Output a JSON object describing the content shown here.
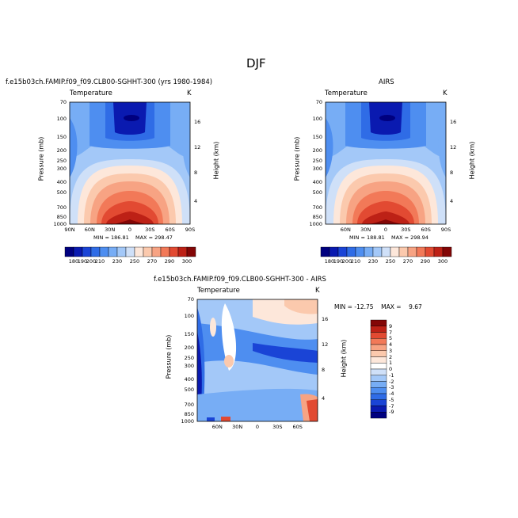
{
  "page_title": "DJF",
  "colors": {
    "temp_scale": [
      "#00007f",
      "#0a1ab0",
      "#1a44d6",
      "#2f6ce6",
      "#4e8ef0",
      "#77adf5",
      "#a3c8f8",
      "#cfe0f8",
      "#fde7da",
      "#fbc9ad",
      "#f7a383",
      "#f27958",
      "#e24a32",
      "#bd2116",
      "#830606"
    ],
    "diff_scale": [
      "#00007f",
      "#0a1ab0",
      "#1a44d6",
      "#2f6ce6",
      "#4e8ef0",
      "#77adf5",
      "#a3c8f8",
      "#cfe0f8",
      "#ffffff",
      "#fde7da",
      "#fbc9ad",
      "#f7a383",
      "#f27958",
      "#e24a32",
      "#bd2116",
      "#830606"
    ]
  },
  "chart_data": [
    {
      "type": "heatmap",
      "header": "f.e15b03ch.FAMIP.f09_f09.CLB00-SGHHT-300 (yrs 1980-1984)",
      "left_title": "Temperature",
      "right_title": "K",
      "ylabel": "Pressure (mb)",
      "y2label": "Height (km)",
      "x_ticks": [
        "90N",
        "60N",
        "30N",
        "0",
        "30S",
        "60S",
        "90S"
      ],
      "y_ticks": [
        "70",
        "100",
        "150",
        "200",
        "250",
        "300",
        "400",
        "500",
        "700",
        "850",
        "1000"
      ],
      "y2_ticks": [
        "16",
        "12",
        "8",
        "4"
      ],
      "stats": {
        "min_label": "MIN =",
        "min": "186.81",
        "max_label": "MAX =",
        "max": "298.47"
      },
      "colorbar_labels": [
        "180",
        "190",
        "200",
        "210",
        "230",
        "250",
        "270",
        "290",
        "300"
      ]
    },
    {
      "type": "heatmap",
      "header": "AIRS",
      "left_title": "Temperature",
      "right_title": "K",
      "ylabel": "Pressure (mb)",
      "y2label": "Height (km)",
      "x_ticks": [
        "60N",
        "30N",
        "0",
        "30S",
        "60S",
        "90S"
      ],
      "y_ticks": [
        "70",
        "100",
        "150",
        "200",
        "250",
        "300",
        "400",
        "500",
        "700",
        "850",
        "1000"
      ],
      "y2_ticks": [
        "16",
        "12",
        "8",
        "4"
      ],
      "stats": {
        "min_label": "MIN =",
        "min": "188.81",
        "max_label": "MAX =",
        "max": "298.94"
      },
      "colorbar_labels": [
        "180",
        "190",
        "200",
        "210",
        "230",
        "250",
        "270",
        "290",
        "300"
      ]
    },
    {
      "type": "heatmap",
      "header": "f.e15b03ch.FAMIP.f09_f09.CLB00-SGHHT-300 - AIRS",
      "left_title": "Temperature",
      "right_title": "K",
      "ylabel": "Pressure (mb)",
      "y2label": "Height (km)",
      "x_ticks": [
        "60N",
        "30N",
        "0",
        "30S",
        "60S"
      ],
      "y_ticks": [
        "70",
        "100",
        "150",
        "200",
        "250",
        "300",
        "400",
        "500",
        "700",
        "850",
        "1000"
      ],
      "y2_ticks": [
        "16",
        "12",
        "8",
        "4"
      ],
      "stats": {
        "min_label": "MIN =",
        "min": "-12.75",
        "max_label": "MAX =",
        "max": "9.67"
      },
      "colorbar_labels": [
        "9",
        "7",
        "5",
        "4",
        "3",
        "2",
        "1",
        "0",
        "-1",
        "-2",
        "-3",
        "-4",
        "-5",
        "-7",
        "-9"
      ]
    }
  ]
}
